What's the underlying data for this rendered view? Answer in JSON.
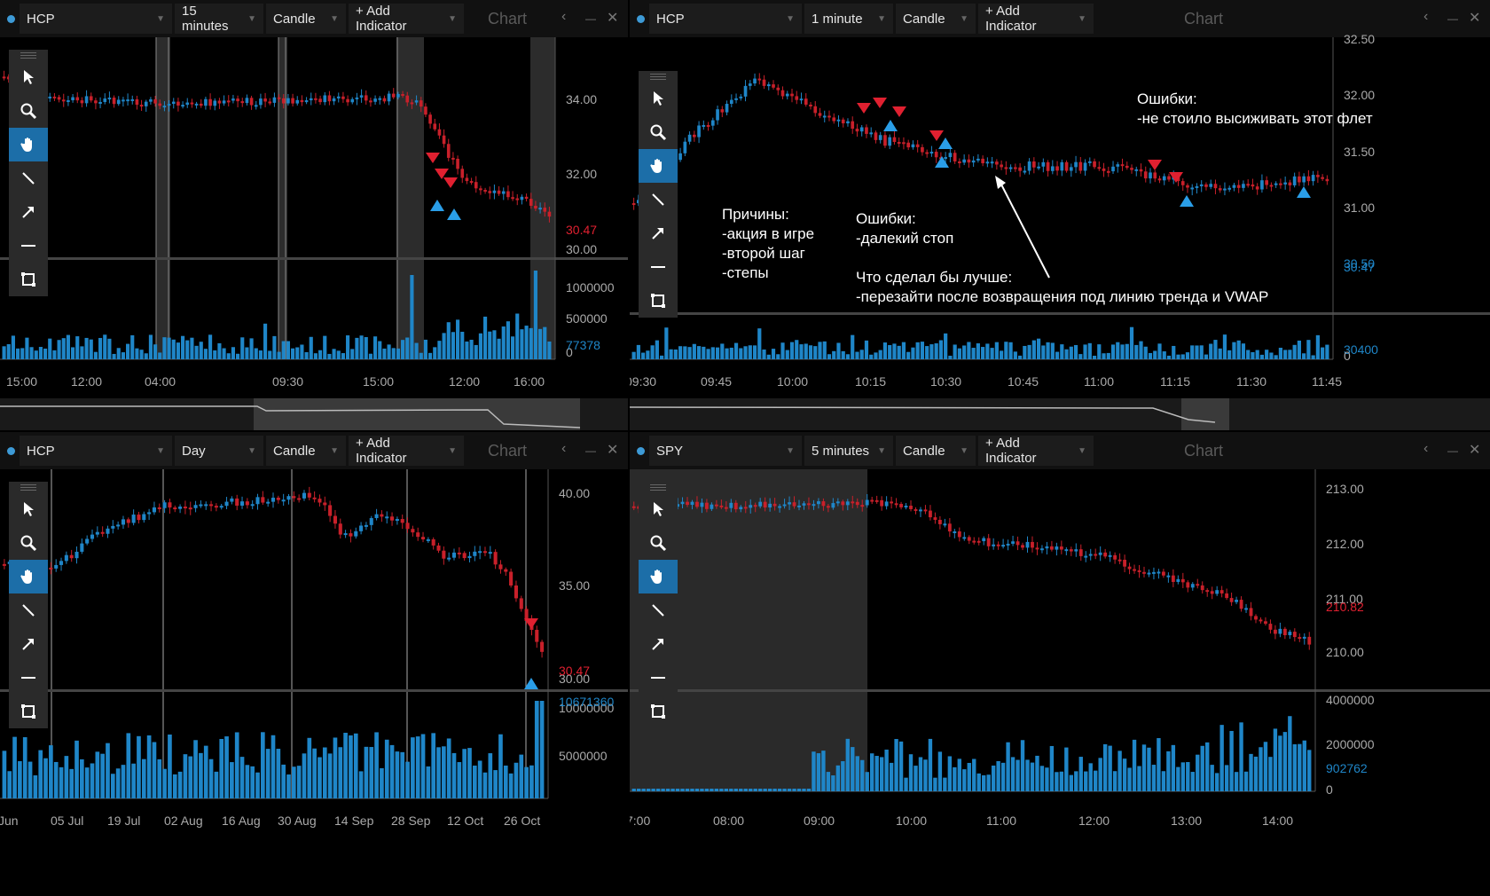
{
  "common": {
    "add_indicator": "+ Add Indicator",
    "chart_label": "Chart",
    "chart_type": "Candle"
  },
  "panes": [
    {
      "id": "tl",
      "symbol": "HCP",
      "interval": "15 minutes",
      "price_labels": [
        "34.00",
        "32.00",
        "30.00"
      ],
      "last_price": "30.47",
      "volume_labels": [
        "1000000",
        "500000",
        "0"
      ],
      "last_volume": "77378",
      "time_labels": [
        "15:00",
        "12:00",
        "04:00",
        "09:30",
        "15:00",
        "12:00",
        "16:00"
      ]
    },
    {
      "id": "tr",
      "symbol": "HCP",
      "interval": "1 minute",
      "price_labels": [
        "32.50",
        "32.00",
        "31.50",
        "31.00",
        "30.50"
      ],
      "last_price": "30.47",
      "volume_labels": [
        "30400",
        "0"
      ],
      "time_labels": [
        "09:30",
        "09:45",
        "10:00",
        "10:15",
        "10:30",
        "10:45",
        "11:00",
        "11:15",
        "11:30",
        "11:45"
      ],
      "annotations": {
        "reasons": "Причины:\n-акция в игре\n-второй шаг\n-степы",
        "errors_mid": "Ошибки:\n-далекий стоп\n\nЧто сделал бы лучше:\n-перезайти после возвращения под линию тренда и VWAP",
        "errors_top": "Ошибки:\n-не стоило высиживать этот флет"
      }
    },
    {
      "id": "bl",
      "symbol": "HCP",
      "interval": "Day",
      "price_labels": [
        "40.00",
        "35.00",
        "30.00"
      ],
      "last_price": "30.47",
      "volume_labels": [
        "10000000",
        "5000000"
      ],
      "last_volume": "10671360",
      "time_labels": [
        "Jun",
        "05 Jul",
        "19 Jul",
        "02 Aug",
        "16 Aug",
        "30 Aug",
        "14 Sep",
        "28 Sep",
        "12 Oct",
        "26 Oct"
      ]
    },
    {
      "id": "br",
      "symbol": "SPY",
      "interval": "5 minutes",
      "price_labels": [
        "213.00",
        "212.00",
        "211.00",
        "210.00"
      ],
      "last_price": "210.82",
      "volume_labels": [
        "4000000",
        "2000000",
        "0"
      ],
      "last_volume": "902762",
      "time_labels": [
        "7:00",
        "08:00",
        "09:00",
        "10:00",
        "11:00",
        "12:00",
        "13:00",
        "14:00"
      ]
    }
  ],
  "tools": [
    "pointer-icon",
    "zoom-icon",
    "hand-icon",
    "line-icon",
    "arrow-icon",
    "horizontal-line-icon",
    "rectangle-icon"
  ],
  "colors": {
    "up": "#1f86c8",
    "down": "#c8202a",
    "bg": "#000000",
    "header": "#111111"
  }
}
